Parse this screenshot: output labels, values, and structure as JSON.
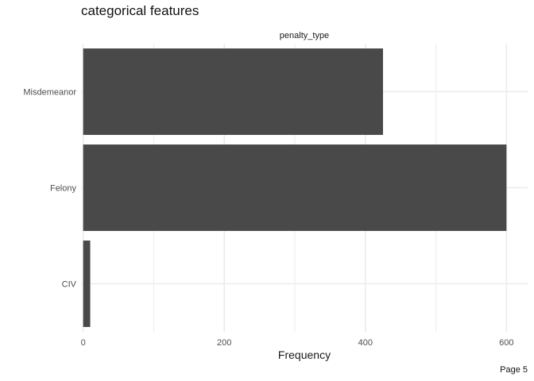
{
  "page": {
    "title": "categorical features",
    "page_number": "Page 5"
  },
  "chart_data": {
    "type": "bar",
    "orientation": "horizontal",
    "facet_label": "penalty_type",
    "categories": [
      "Misdemeanor",
      "Felony",
      "CIV"
    ],
    "values": [
      425,
      600,
      10
    ],
    "xlabel": "Frequency",
    "ylabel": "",
    "xlim": [
      -3,
      630
    ],
    "xticks": [
      0,
      200,
      400,
      600
    ],
    "grid": true,
    "bar_color": "#494949",
    "grid_color": "#ebebeb"
  }
}
